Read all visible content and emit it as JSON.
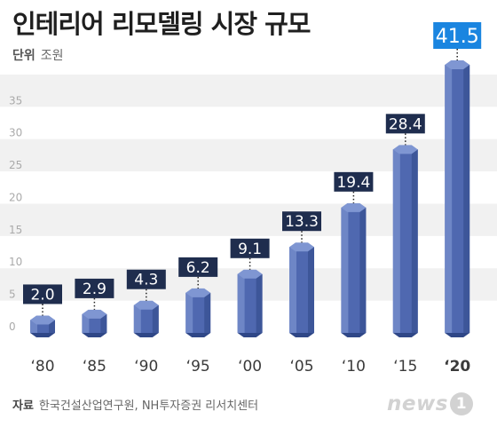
{
  "title": "인테리어 리모델링 시장 규모",
  "unit": {
    "key": "단위",
    "value": "조원"
  },
  "source": {
    "key": "자료",
    "value": "한국건설산업연구원, NH투자증권 리서치센터"
  },
  "logo": {
    "text": "news",
    "digit": "1"
  },
  "colors": {
    "bar": "#4f68b0",
    "bar_highlight": "#7f96d2",
    "bar_shade": "#2f4787",
    "label_box": "#1f2d4e",
    "label_box_last": "#1a85e0",
    "label_text": "#ffffff",
    "stripe": "#f1f1f1",
    "axis_text": "#aaaaaa",
    "category_text": "#3a3a3a"
  },
  "chart_data": {
    "type": "bar",
    "title": "인테리어 리모델링 시장 규모",
    "ylabel": "",
    "categories": [
      "‘80",
      "‘85",
      "‘90",
      "‘95",
      "‘00",
      "‘05",
      "‘10",
      "‘15",
      "‘20"
    ],
    "values": [
      2.0,
      2.9,
      4.3,
      6.2,
      9.1,
      13.3,
      19.4,
      28.4,
      41.5
    ],
    "value_labels": [
      "2.0",
      "2.9",
      "4.3",
      "6.2",
      "9.1",
      "13.3",
      "19.4",
      "28.4",
      "41.5"
    ],
    "ylim": [
      0,
      40
    ],
    "yticks": [
      "0",
      "5",
      "10",
      "15",
      "20",
      "25",
      "30",
      "35"
    ],
    "grid": "horizontal bands",
    "highlight_index": 8
  }
}
